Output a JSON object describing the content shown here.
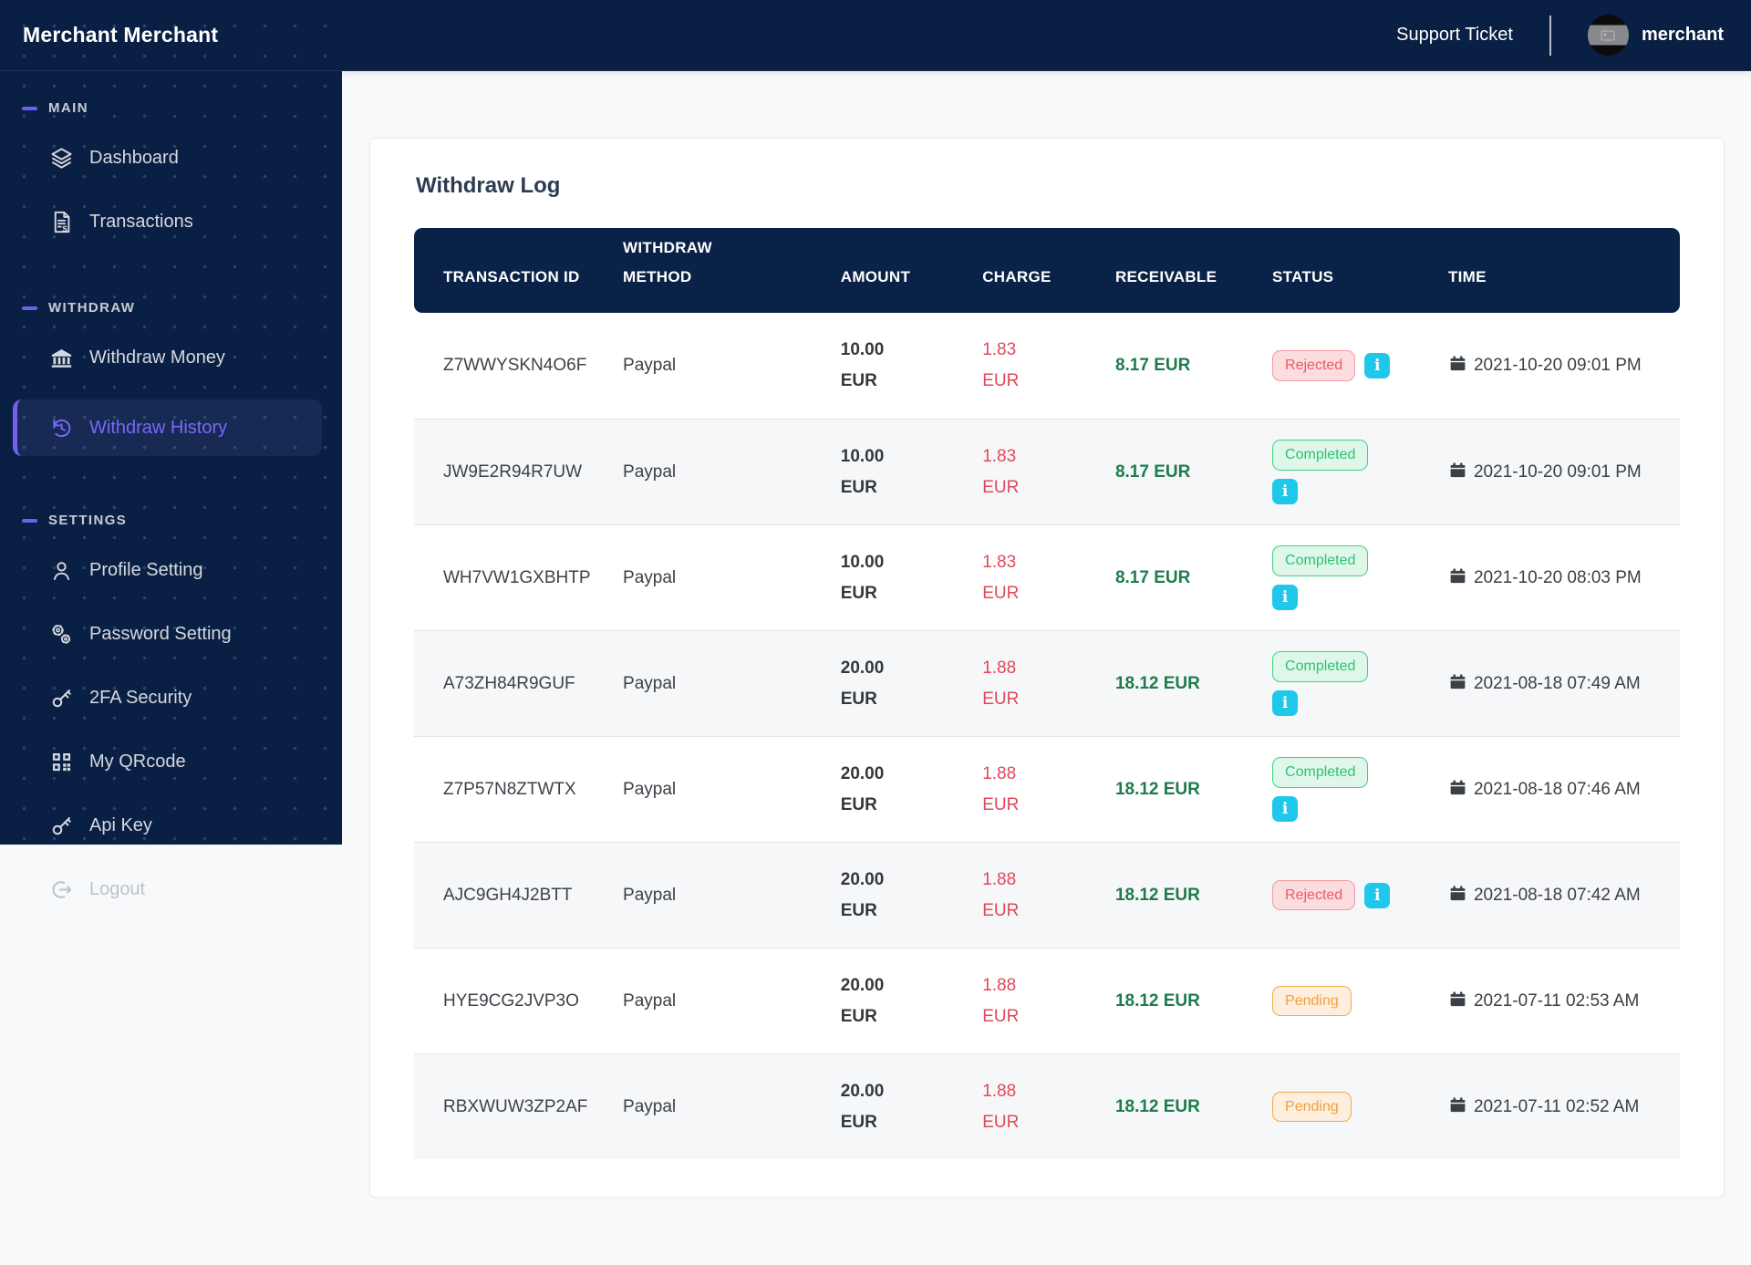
{
  "brand": "Merchant Merchant",
  "topbar": {
    "support_ticket": "Support Ticket",
    "username": "merchant"
  },
  "sidebar": {
    "sections": [
      {
        "label": "MAIN",
        "items": [
          {
            "label": "Dashboard",
            "icon": "layers-icon",
            "active": false
          },
          {
            "label": "Transactions",
            "icon": "invoice-icon",
            "active": false
          }
        ]
      },
      {
        "label": "WITHDRAW",
        "items": [
          {
            "label": "Withdraw Money",
            "icon": "bank-icon",
            "active": false
          },
          {
            "label": "Withdraw History",
            "icon": "history-icon",
            "active": true
          }
        ]
      },
      {
        "label": "SETTINGS",
        "items": [
          {
            "label": "Profile Setting",
            "icon": "user-icon",
            "active": false
          },
          {
            "label": "Password Setting",
            "icon": "cogs-icon",
            "active": false
          },
          {
            "label": "2FA Security",
            "icon": "key-icon",
            "active": false
          },
          {
            "label": "My QRcode",
            "icon": "qrcode-icon",
            "active": false
          },
          {
            "label": "Api Key",
            "icon": "key-icon",
            "active": false
          },
          {
            "label": "Logout",
            "icon": "logout-icon",
            "active": false
          }
        ]
      }
    ]
  },
  "card": {
    "title": "Withdraw Log"
  },
  "table": {
    "columns": [
      "TRANSACTION ID",
      "WITHDRAW METHOD",
      "AMOUNT",
      "CHARGE",
      "RECEIVABLE",
      "STATUS",
      "TIME"
    ],
    "rows": [
      {
        "transaction_id": "Z7WWYSKN4O6F",
        "withdraw_method": "Paypal",
        "amount": "10.00 EUR",
        "charge": "1.83 EUR",
        "receivable": "8.17 EUR",
        "status": "Rejected",
        "time": "2021-10-20 09:01 PM",
        "info": true
      },
      {
        "transaction_id": "JW9E2R94R7UW",
        "withdraw_method": "Paypal",
        "amount": "10.00 EUR",
        "charge": "1.83 EUR",
        "receivable": "8.17 EUR",
        "status": "Completed",
        "time": "2021-10-20 09:01 PM",
        "info": true
      },
      {
        "transaction_id": "WH7VW1GXBHTP",
        "withdraw_method": "Paypal",
        "amount": "10.00 EUR",
        "charge": "1.83 EUR",
        "receivable": "8.17 EUR",
        "status": "Completed",
        "time": "2021-10-20 08:03 PM",
        "info": true
      },
      {
        "transaction_id": "A73ZH84R9GUF",
        "withdraw_method": "Paypal",
        "amount": "20.00 EUR",
        "charge": "1.88 EUR",
        "receivable": "18.12 EUR",
        "status": "Completed",
        "time": "2021-08-18 07:49 AM",
        "info": true
      },
      {
        "transaction_id": "Z7P57N8ZTWTX",
        "withdraw_method": "Paypal",
        "amount": "20.00 EUR",
        "charge": "1.88 EUR",
        "receivable": "18.12 EUR",
        "status": "Completed",
        "time": "2021-08-18 07:46 AM",
        "info": true
      },
      {
        "transaction_id": "AJC9GH4J2BTT",
        "withdraw_method": "Paypal",
        "amount": "20.00 EUR",
        "charge": "1.88 EUR",
        "receivable": "18.12 EUR",
        "status": "Rejected",
        "time": "2021-08-18 07:42 AM",
        "info": true
      },
      {
        "transaction_id": "HYE9CG2JVP3O",
        "withdraw_method": "Paypal",
        "amount": "20.00 EUR",
        "charge": "1.88 EUR",
        "receivable": "18.12 EUR",
        "status": "Pending",
        "time": "2021-07-11 02:53 AM",
        "info": false
      },
      {
        "transaction_id": "RBXWUW3ZP2AF",
        "withdraw_method": "Paypal",
        "amount": "20.00 EUR",
        "charge": "1.88 EUR",
        "receivable": "18.12 EUR",
        "status": "Pending",
        "time": "2021-07-11 02:52 AM",
        "info": false
      }
    ]
  },
  "colors": {
    "navy": "#0a1f44",
    "table_head": "#0b2248",
    "accent_purple": "#7b68f8",
    "rejected_red": "#ee5a68",
    "completed_green": "#2bc46f",
    "pending_orange": "#f0a23e",
    "info_cyan": "#1fc8ea",
    "charge_red": "#e0485a",
    "receivable_green": "#1e7b4c"
  }
}
